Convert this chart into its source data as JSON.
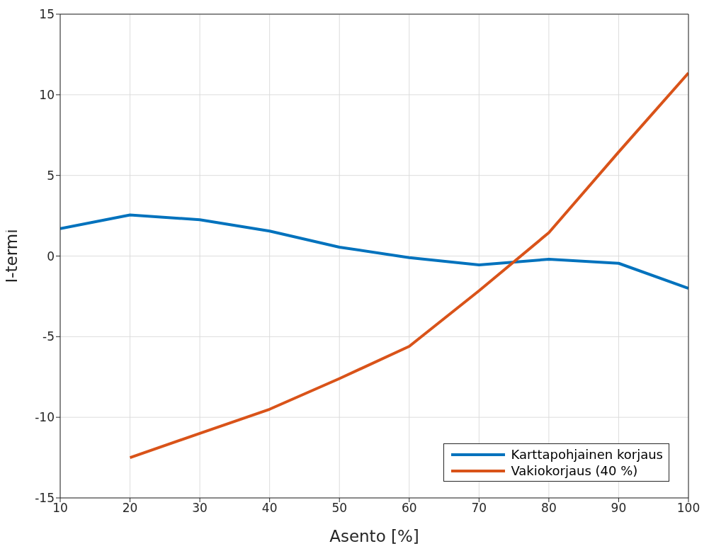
{
  "chart_data": {
    "type": "line",
    "xlabel": "Asento [%]",
    "ylabel": "I-termi",
    "x": [
      10,
      20,
      30,
      40,
      50,
      60,
      70,
      80,
      90,
      100
    ],
    "series": [
      {
        "name": "Karttapohjainen korjaus",
        "color": "#0072bd",
        "values": [
          1.7,
          2.55,
          2.25,
          1.55,
          0.55,
          -0.1,
          -0.55,
          -0.2,
          -0.45,
          -2.0
        ]
      },
      {
        "name": "Vakiokorjaus (40 %)",
        "color": "#d95319",
        "values": [
          null,
          -12.5,
          -11.0,
          -9.5,
          -7.6,
          -5.6,
          -2.15,
          1.45,
          6.45,
          11.35
        ]
      }
    ],
    "xlim": [
      10,
      100
    ],
    "xticks": [
      10,
      20,
      30,
      40,
      50,
      60,
      70,
      80,
      90,
      100
    ],
    "ylim": [
      -15,
      15
    ],
    "yticks": [
      -15,
      -10,
      -5,
      0,
      5,
      10,
      15
    ],
    "grid": true,
    "legend": "bottom right",
    "marker": "none",
    "line_style": "solid"
  }
}
